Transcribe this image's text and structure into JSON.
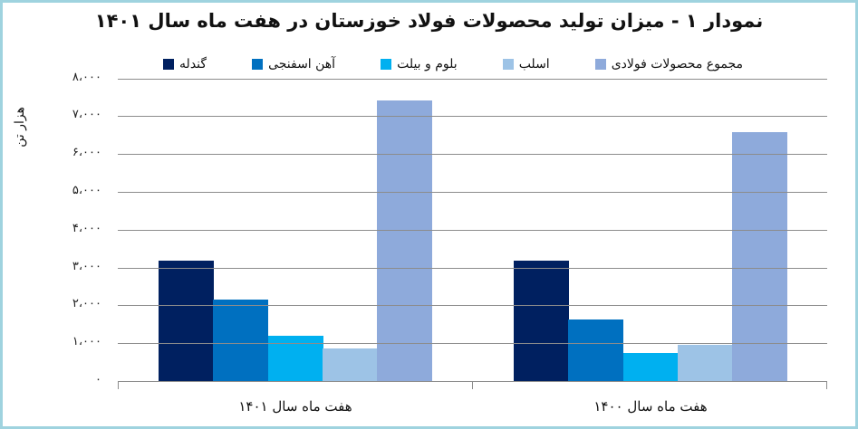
{
  "chart_data": {
    "type": "bar",
    "title": "نمودار ۱ - میزان تولید محصولات فولاد خوزستان در هفت ماه سال ۱۴۰۱",
    "xlabel": "",
    "ylabel": "هزار تن",
    "ylim": [
      0,
      8000
    ],
    "yticks": [
      "۰",
      "۱،۰۰۰",
      "۲،۰۰۰",
      "۳،۰۰۰",
      "۴،۰۰۰",
      "۵،۰۰۰",
      "۶،۰۰۰",
      "۷،۰۰۰",
      "۸،۰۰۰"
    ],
    "grid": true,
    "legend_position": "top",
    "categories": [
      "هفت ماه سال ۱۴۰۱",
      "هفت ماه سال ۱۴۰۰"
    ],
    "series": [
      {
        "name": "گندله",
        "color": "#002060",
        "values": [
          3180,
          3180
        ]
      },
      {
        "name": "آهن اسفنجی",
        "color": "#0070c0",
        "values": [
          2150,
          1630
        ]
      },
      {
        "name": "بلوم و بیلت",
        "color": "#00b0f0",
        "values": [
          1200,
          740
        ]
      },
      {
        "name": "اسلب",
        "color": "#9dc3e6",
        "values": [
          860,
          960
        ]
      },
      {
        "name": "مجموع محصولات فولادی",
        "color": "#8eaadb",
        "values": [
          7420,
          6580
        ]
      }
    ]
  },
  "frame_color": "#9fd3df"
}
